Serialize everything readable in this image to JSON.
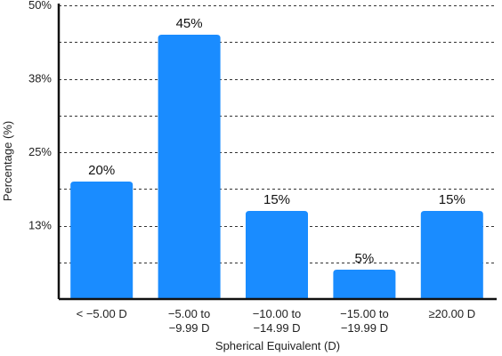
{
  "chart_data": {
    "type": "bar",
    "title": "",
    "xlabel": "Spherical Equivalent (D)",
    "ylabel": "Percentage (%)",
    "ylim": [
      0,
      50
    ],
    "y_tick_labels": [
      "13%",
      "25%",
      "38%",
      "50%"
    ],
    "y_tick_values": [
      12.5,
      25,
      37.5,
      50
    ],
    "y_gridline_values": [
      6.25,
      18.75,
      31.25,
      43.75
    ],
    "grid": "dashed horizontal",
    "categories": [
      [
        "< −5.00 D"
      ],
      [
        "−5.00 to",
        "−9.99 D"
      ],
      [
        "−10.00 to",
        "−14.99 D"
      ],
      [
        "−15.00 to",
        "−19.99 D"
      ],
      [
        "≥20.00 D"
      ]
    ],
    "values": [
      20,
      45,
      15,
      5,
      15
    ],
    "data_labels": [
      "20%",
      "45%",
      "15%",
      "5%",
      "15%"
    ],
    "bar_color": "#1a8cff"
  }
}
